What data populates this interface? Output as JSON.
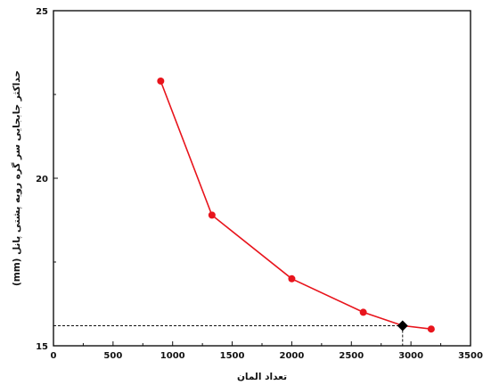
{
  "chart_data": {
    "type": "line",
    "xlabel": "تعداد المان",
    "ylabel": "حداکثر جابجایی سر گره رویه پشتی پانل (mm)",
    "xlim": [
      0,
      3500
    ],
    "ylim": [
      15,
      25
    ],
    "xticks": [
      0,
      500,
      1000,
      1500,
      2000,
      2500,
      3000,
      3500
    ],
    "yticks": [
      15,
      20,
      25
    ],
    "grid": false,
    "series": [
      {
        "color": "#e8141c",
        "x": [
          900,
          1330,
          2000,
          2600,
          2930,
          3170
        ],
        "y": [
          22.9,
          18.9,
          17.0,
          16.0,
          15.6,
          15.5
        ]
      }
    ],
    "highlight": {
      "x": 2930,
      "y": 15.6,
      "color": "#000000",
      "marker": "diamond"
    }
  }
}
